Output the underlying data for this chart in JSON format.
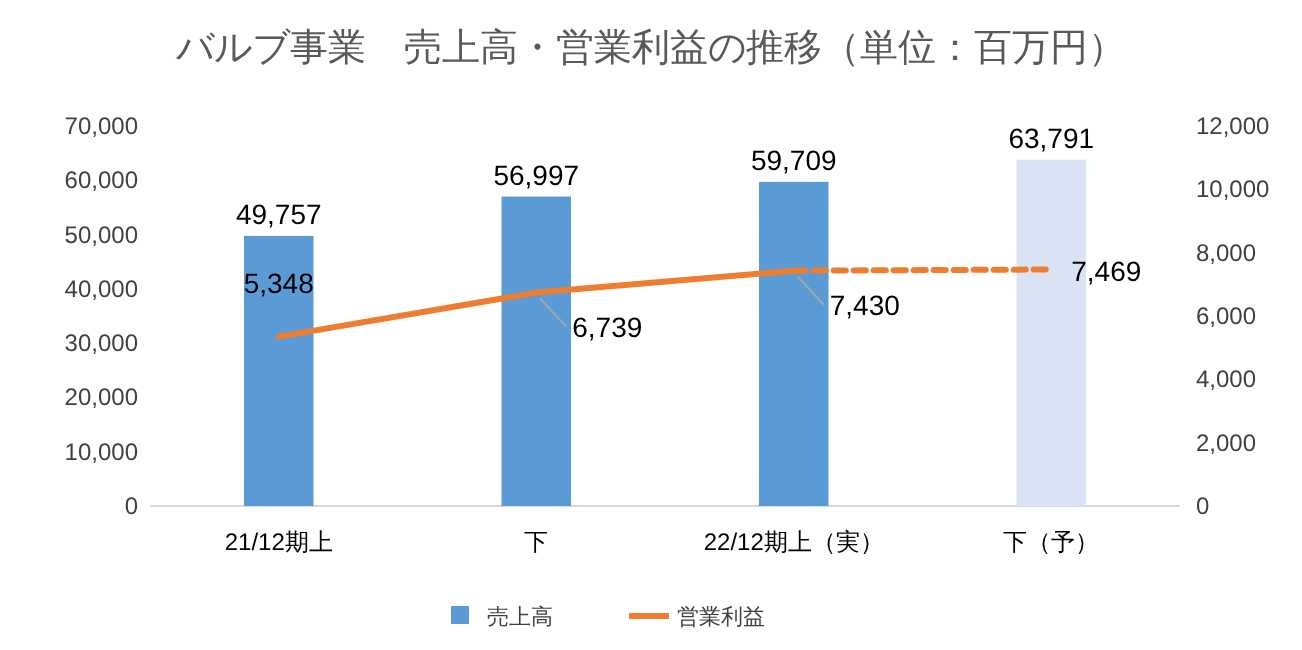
{
  "chart_data": {
    "type": "bar",
    "title": "バルブ事業　売上高・営業利益の推移（単位：百万円）",
    "categories": [
      "21/12期上",
      "下",
      "22/12期上（実）",
      "下（予）"
    ],
    "ylim": [
      0,
      70000
    ],
    "yticks": [
      {
        "value": 0,
        "label": "0"
      },
      {
        "value": 10000,
        "label": "10,000"
      },
      {
        "value": 20000,
        "label": "20,000"
      },
      {
        "value": 30000,
        "label": "30,000"
      },
      {
        "value": 40000,
        "label": "40,000"
      },
      {
        "value": 50000,
        "label": "50,000"
      },
      {
        "value": 60000,
        "label": "60,000"
      },
      {
        "value": 70000,
        "label": "70,000"
      }
    ],
    "y2lim": [
      0,
      12000
    ],
    "y2ticks": [
      {
        "value": 0,
        "label": "0"
      },
      {
        "value": 2000,
        "label": "2,000"
      },
      {
        "value": 4000,
        "label": "4,000"
      },
      {
        "value": 6000,
        "label": "6,000"
      },
      {
        "value": 8000,
        "label": "8,000"
      },
      {
        "value": 10000,
        "label": "10,000"
      },
      {
        "value": 12000,
        "label": "12,000"
      }
    ],
    "grid": false,
    "legend": "bottom",
    "series": [
      {
        "name": "売上高",
        "color": "#5b9bd5",
        "colors": [
          "#5b9bd5",
          "#5b9bd5",
          "#5b9bd5",
          "#dae3f3"
        ],
        "values": [
          49757,
          56997,
          59709,
          63791
        ],
        "value_labels": [
          "49,757",
          "56,997",
          "59,709",
          "63,791"
        ]
      },
      {
        "name": "営業利益",
        "type": "line",
        "axis": "y2",
        "color": "#ed7d31",
        "line_style": "solid",
        "marker": "none",
        "values": [
          5348,
          6739,
          7430,
          null
        ],
        "value_labels": [
          "5,348",
          "6,739",
          "7,430",
          null
        ]
      },
      {
        "type": "line",
        "axis": "y2",
        "color": "#ed7d31",
        "line_style": "dashed",
        "marker": "none",
        "values": [
          null,
          null,
          7430,
          7469
        ],
        "value_labels": [
          null,
          null,
          null,
          "7,469"
        ]
      }
    ]
  }
}
